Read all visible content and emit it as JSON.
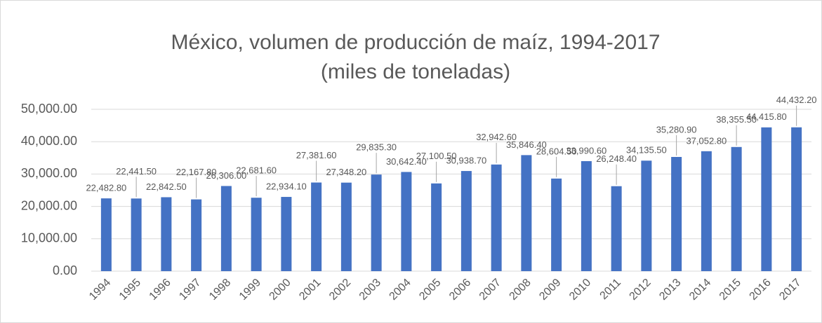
{
  "chart_data": {
    "type": "bar",
    "title": "México, volumen de producción de maíz, 1994-2017",
    "subtitle": "(miles de toneladas)",
    "categories": [
      "1994",
      "1995",
      "1996",
      "1997",
      "1998",
      "1999",
      "2000",
      "2001",
      "2002",
      "2003",
      "2004",
      "2005",
      "2006",
      "2007",
      "2008",
      "2009",
      "2010",
      "2011",
      "2012",
      "2013",
      "2014",
      "2015",
      "2016",
      "2017"
    ],
    "values": [
      22482.8,
      22441.5,
      22842.5,
      22167.8,
      26306.0,
      22681.6,
      22934.1,
      27381.6,
      27348.2,
      29835.3,
      30642.4,
      27100.5,
      30938.7,
      32942.6,
      35846.4,
      28604.5,
      33990.6,
      26248.4,
      34135.5,
      35280.9,
      37052.8,
      38355.5,
      44415.8,
      44432.2
    ],
    "value_labels": [
      "22,482.80",
      "22,441.50",
      "22,842.50",
      "22,167.80",
      "26,306.00",
      "22,681.60",
      "22,934.10",
      "27,381.60",
      "27,348.20",
      "29,835.30",
      "30,642.40",
      "27,100.50",
      "30,938.70",
      "32,942.60",
      "35,846.40",
      "28,604.50",
      "33,990.60",
      "26,248.40",
      "34,135.50",
      "35,280.90",
      "37,052.80",
      "38,355.50",
      "44,415.80",
      "44,432.20"
    ],
    "color": "#4472c4",
    "ylim": [
      0,
      50000
    ],
    "yticks": [
      {
        "value": 0,
        "label": "0.00"
      },
      {
        "value": 10000,
        "label": "10,000.00"
      },
      {
        "value": 20000,
        "label": "20,000.00"
      },
      {
        "value": 30000,
        "label": "30,000.00"
      },
      {
        "value": 40000,
        "label": "40,000.00"
      },
      {
        "value": 50000,
        "label": "50,000.00"
      }
    ],
    "grid": true
  }
}
